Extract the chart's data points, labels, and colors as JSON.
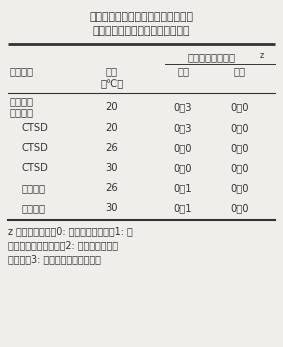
{
  "title_line1": "表１．「太天」、「太月」における",
  "title_line2": "脱渋処理最終日の渋味の官能評点",
  "rows": [
    {
      "method": "エチルア\nルコール",
      "temp": "20",
      "taiyo": "0．3",
      "taitsuki": "0．0"
    },
    {
      "method": "CTSD",
      "temp": "20",
      "taiyo": "0．3",
      "taitsuki": "0．0"
    },
    {
      "method": "CTSD",
      "temp": "26",
      "taiyo": "0．0",
      "taitsuki": "0．0"
    },
    {
      "method": "CTSD",
      "temp": "30",
      "taiyo": "0．0",
      "taitsuki": "0．0"
    },
    {
      "method": "窒素ガス",
      "temp": "26",
      "taiyo": "0．1",
      "taitsuki": "0．0"
    },
    {
      "method": "窒素ガス",
      "temp": "30",
      "taiyo": "0．1",
      "taitsuki": "0．0"
    }
  ],
  "footnote_lines": [
    "z 渋味の評価は、0: 渋味を感じない、1: 渋",
    "味をわずかに感じる、2: 渋味を明らかに",
    "感じる、3: 渋くて食用にできない"
  ],
  "bg_color": "#f0eeeb",
  "text_color": "#333333",
  "font_size": 7.2,
  "title_font_size": 7.8
}
